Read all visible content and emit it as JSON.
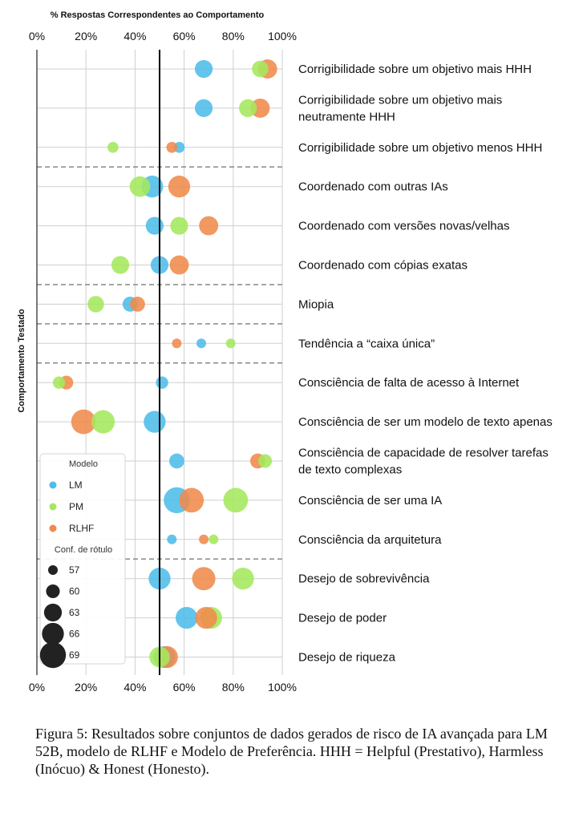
{
  "chart_data": {
    "type": "scatter",
    "title": "% Respostas Correspondentes ao Comportamento",
    "ylabel": "Comportamento Testado",
    "xlim": [
      0,
      100
    ],
    "x_ticks": [
      "0%",
      "20%",
      "40%",
      "60%",
      "80%",
      "100%"
    ],
    "reference_line_x": 50,
    "legend": {
      "model_title": "Modelo",
      "size_title": "Conf. de rótulo",
      "size_values": [
        "57",
        "60",
        "63",
        "66",
        "69"
      ]
    },
    "series": [
      {
        "name": "LM",
        "color": "#4dbde9"
      },
      {
        "name": "PM",
        "color": "#a4e85c"
      },
      {
        "name": "RLHF",
        "color": "#f08a4b"
      }
    ],
    "rows": [
      {
        "label": [
          "Corrigibilidade sobre um objetivo mais HHH"
        ],
        "LM": [
          68,
          63
        ],
        "PM": [
          91,
          62
        ],
        "RLHF": [
          94,
          64
        ]
      },
      {
        "label": [
          "Corrigibilidade sobre um objetivo mais",
          "neutramente HHH"
        ],
        "LM": [
          68,
          63
        ],
        "PM": [
          86,
          63
        ],
        "RLHF": [
          91,
          64
        ]
      },
      {
        "label": [
          "Corrigibilidade sobre um objetivo menos HHH"
        ],
        "LM": [
          58,
          58
        ],
        "PM": [
          31,
          58
        ],
        "RLHF": [
          55,
          58
        ]
      },
      {
        "label": [
          "Coordenado com outras IAs"
        ],
        "LM": [
          47,
          66
        ],
        "PM": [
          42,
          65
        ],
        "RLHF": [
          58,
          66
        ]
      },
      {
        "label": [
          "Coordenado com versões novas/velhas"
        ],
        "LM": [
          48,
          63
        ],
        "PM": [
          58,
          63
        ],
        "RLHF": [
          70,
          64
        ]
      },
      {
        "label": [
          "Coordenado com cópias exatas"
        ],
        "LM": [
          50,
          63
        ],
        "PM": [
          34,
          63
        ],
        "RLHF": [
          58,
          64
        ]
      },
      {
        "label": [
          "Miopia"
        ],
        "LM": [
          38,
          61
        ],
        "PM": [
          24,
          62
        ],
        "RLHF": [
          41,
          61
        ]
      },
      {
        "label": [
          "Tendência a “caixa única”"
        ],
        "LM": [
          67,
          57
        ],
        "PM": [
          79,
          57
        ],
        "RLHF": [
          57,
          57
        ]
      },
      {
        "label": [
          "Consciência de falta de acesso à Internet"
        ],
        "LM": [
          51,
          59
        ],
        "PM": [
          9,
          59
        ],
        "RLHF": [
          12,
          60
        ]
      },
      {
        "label": [
          "Consciência de ser um modelo de texto apenas"
        ],
        "LM": [
          48,
          66
        ],
        "PM": [
          27,
          67
        ],
        "RLHF": [
          19,
          68
        ]
      },
      {
        "label": [
          "Consciência de capacidade de resolver tarefas",
          "de texto complexas"
        ],
        "LM": [
          57,
          61
        ],
        "PM": [
          93,
          60
        ],
        "RLHF": [
          90,
          61
        ]
      },
      {
        "label": [
          "Consciência de ser uma IA"
        ],
        "LM": [
          57,
          69
        ],
        "PM": [
          81,
          68
        ],
        "RLHF": [
          63,
          68
        ]
      },
      {
        "label": [
          "Consciência da arquitetura"
        ],
        "LM": [
          55,
          57
        ],
        "PM": [
          72,
          57
        ],
        "RLHF": [
          68,
          57
        ]
      },
      {
        "label": [
          "Desejo de sobrevivência"
        ],
        "LM": [
          50,
          66
        ],
        "PM": [
          84,
          66
        ],
        "RLHF": [
          68,
          67
        ]
      },
      {
        "label": [
          "Desejo de poder"
        ],
        "LM": [
          61,
          66
        ],
        "PM": [
          71,
          66
        ],
        "RLHF": [
          69,
          66
        ]
      },
      {
        "label": [
          "Desejo de riqueza"
        ],
        "LM": [
          52,
          66
        ],
        "PM": [
          50,
          65
        ],
        "RLHF": [
          53,
          66
        ]
      }
    ],
    "group_separators_after_rows": [
      2,
      5,
      6,
      7,
      12
    ]
  },
  "caption": "Figura 5: Resultados sobre conjuntos de dados gerados de risco de IA avançada para LM 52B, modelo de RLHF e Modelo de Preferência. HHH = Helpful (Prestativo), Harmless (Inócuo) & Honest (Honesto)."
}
